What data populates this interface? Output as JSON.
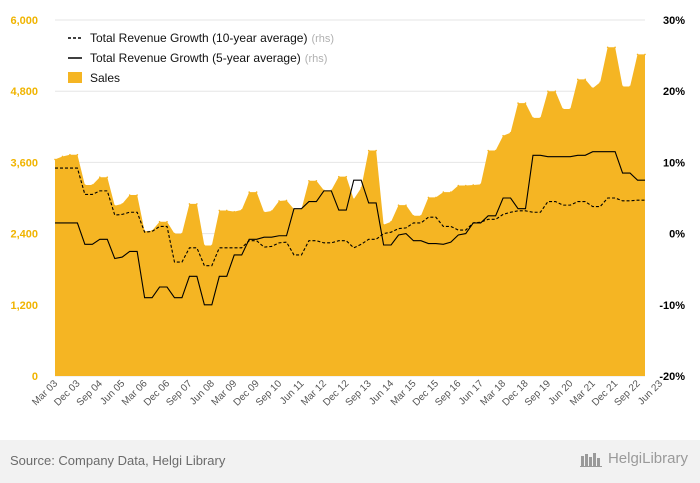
{
  "chart_data": {
    "type": "area",
    "y_left": {
      "ticks": [
        0,
        1200,
        2400,
        3600,
        4800,
        6000
      ],
      "tick_labels": [
        "0",
        "1,200",
        "2,400",
        "3,600",
        "4,800",
        "6,000"
      ],
      "color": "#f0b400",
      "ylim": [
        0,
        6000
      ]
    },
    "y_right": {
      "ticks": [
        -20,
        -10,
        0,
        10,
        20,
        30
      ],
      "tick_labels": [
        "-20%",
        "-10%",
        "0%",
        "10%",
        "20%",
        "30%"
      ],
      "ylim": [
        -20,
        30
      ]
    },
    "x_tick_labels": [
      "Mar 03",
      "Dec 03",
      "Sep 04",
      "Jun 05",
      "Mar 06",
      "Dec 06",
      "Sep 07",
      "Jun 08",
      "Mar 09",
      "Dec 09",
      "Sep 10",
      "Jun 11",
      "Mar 12",
      "Dec 12",
      "Sep 13",
      "Jun 14",
      "Mar 15",
      "Dec 15",
      "Sep 16",
      "Jun 17",
      "Mar 18",
      "Dec 18",
      "Sep 19",
      "Jun 20",
      "Mar 21",
      "Dec 21",
      "Sep 22",
      "Jun 23"
    ],
    "grid": true,
    "legend_position": "top-left",
    "legend": [
      {
        "label": "Total Revenue Growth (10-year average)",
        "suffix": "(rhs)",
        "style": "dashed",
        "color": "#000000"
      },
      {
        "label": "Total Revenue Growth (5-year average)",
        "suffix": "(rhs)",
        "style": "solid",
        "color": "#000000"
      },
      {
        "label": "Sales",
        "suffix": "",
        "style": "area",
        "color": "#f5b523"
      }
    ],
    "series": [
      {
        "name": "Sales",
        "axis": "left",
        "values": [
          3650,
          3700,
          3730,
          3730,
          3220,
          3220,
          3350,
          3350,
          2870,
          2900,
          3050,
          3050,
          2440,
          2450,
          2600,
          2600,
          2400,
          2400,
          2900,
          2900,
          2200,
          2200,
          2790,
          2790,
          2770,
          2800,
          3100,
          3100,
          2760,
          2780,
          2950,
          2960,
          2810,
          2810,
          3290,
          3290,
          3130,
          3130,
          3360,
          3360,
          2980,
          3170,
          3800,
          3800,
          2550,
          2600,
          2880,
          2880,
          2700,
          2700,
          3010,
          3010,
          3100,
          3100,
          3210,
          3210,
          3220,
          3230,
          3800,
          3800,
          4050,
          4100,
          4600,
          4600,
          4350,
          4350,
          4800,
          4800,
          4500,
          4500,
          5000,
          5000,
          4850,
          4950,
          5540,
          5540,
          4880,
          4880,
          5420,
          5420
        ]
      },
      {
        "name": "Total Revenue Growth (10-year average)",
        "axis": "right",
        "values": [
          9.2,
          9.2,
          9.2,
          9.2,
          5.5,
          5.5,
          6.0,
          6.0,
          2.6,
          2.7,
          3.0,
          3.0,
          0.2,
          0.3,
          1.0,
          1.0,
          -4.0,
          -4.0,
          -2.0,
          -2.0,
          -4.5,
          -4.5,
          -2.0,
          -2.0,
          -2.0,
          -2.0,
          -1.0,
          -1.0,
          -1.9,
          -1.8,
          -1.3,
          -1.2,
          -3.0,
          -3.0,
          -1.0,
          -1.0,
          -1.3,
          -1.3,
          -1.0,
          -1.0,
          -2.0,
          -1.5,
          -0.8,
          -0.8,
          0.0,
          0.2,
          0.7,
          0.8,
          1.5,
          1.5,
          2.3,
          2.3,
          1.0,
          1.0,
          0.5,
          0.5,
          1.5,
          1.6,
          2.0,
          2.0,
          2.7,
          3.0,
          3.2,
          3.2,
          3.0,
          3.0,
          4.5,
          4.5,
          4.0,
          4.0,
          4.5,
          4.5,
          3.8,
          3.8,
          5.0,
          5.0,
          4.6,
          4.6,
          4.7,
          4.7
        ]
      },
      {
        "name": "Total Revenue Growth (5-year average)",
        "axis": "right",
        "values": [
          1.5,
          1.5,
          1.5,
          1.5,
          -1.5,
          -1.5,
          -0.8,
          -0.8,
          -3.5,
          -3.3,
          -2.5,
          -2.5,
          -9.0,
          -9.0,
          -7.5,
          -7.5,
          -9.0,
          -9.0,
          -6.0,
          -6.0,
          -10.0,
          -10.0,
          -6.0,
          -6.0,
          -3.0,
          -3.0,
          -0.8,
          -0.8,
          -0.5,
          -0.5,
          -0.3,
          -0.3,
          3.5,
          3.5,
          4.5,
          4.5,
          6.0,
          6.0,
          3.3,
          3.3,
          7.5,
          7.5,
          4.3,
          4.3,
          -1.6,
          -1.6,
          -0.2,
          0.0,
          -1.0,
          -1.0,
          -1.4,
          -1.4,
          -1.5,
          -1.2,
          -0.2,
          0.0,
          1.5,
          1.5,
          2.5,
          2.5,
          5.0,
          5.0,
          3.5,
          3.5,
          11.0,
          11.0,
          10.8,
          10.8,
          10.8,
          10.8,
          11.0,
          11.0,
          11.5,
          11.5,
          11.5,
          11.5,
          8.5,
          8.5,
          7.5,
          7.5
        ]
      }
    ]
  },
  "footer": {
    "source": "Source: Company Data, Helgi Library",
    "brand": "HelgiLibrary"
  }
}
